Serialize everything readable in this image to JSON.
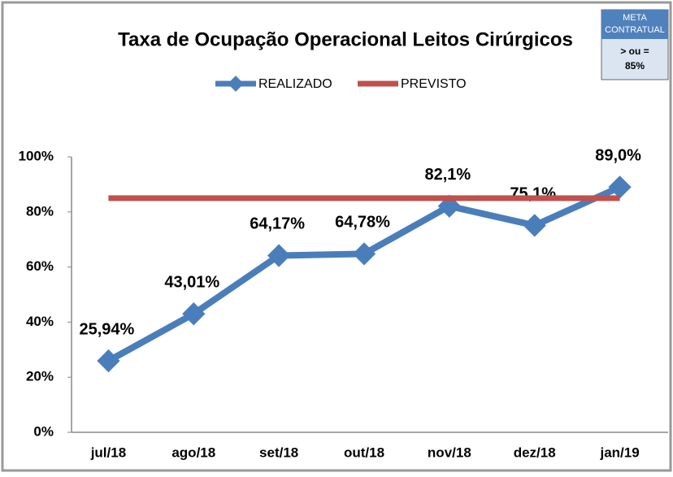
{
  "chart_data": {
    "type": "line",
    "title": "Taxa de Ocupação Operacional Leitos Cirúrgicos",
    "categories": [
      "jul/18",
      "ago/18",
      "set/18",
      "out/18",
      "nov/18",
      "dez/18",
      "jan/19"
    ],
    "series": [
      {
        "name": "REALIZADO",
        "color": "#4a7ebb",
        "values": [
          25.94,
          43.01,
          64.17,
          64.78,
          82.1,
          75.1,
          89.0
        ],
        "value_labels": [
          "25,94%",
          "43,01%",
          "64,17%",
          "64,78%",
          "82,1%",
          "75,1%",
          "89,0%"
        ],
        "marker": "diamond"
      },
      {
        "name": "PREVISTO",
        "color": "#c0504d",
        "values": [
          85,
          85,
          85,
          85,
          85,
          85,
          85
        ]
      }
    ],
    "ylim": [
      0,
      100
    ],
    "yticks": [
      {
        "value": 0,
        "label": "0%"
      },
      {
        "value": 20,
        "label": "20%"
      },
      {
        "value": 40,
        "label": "40%"
      },
      {
        "value": 60,
        "label": "60%"
      },
      {
        "value": 80,
        "label": "80%"
      },
      {
        "value": 100,
        "label": "100%"
      }
    ],
    "grid": false,
    "legend": "top",
    "annotation": {
      "header": [
        "META",
        "CONTRATUAL"
      ],
      "lines": [
        "> ou =",
        "85%"
      ]
    }
  }
}
